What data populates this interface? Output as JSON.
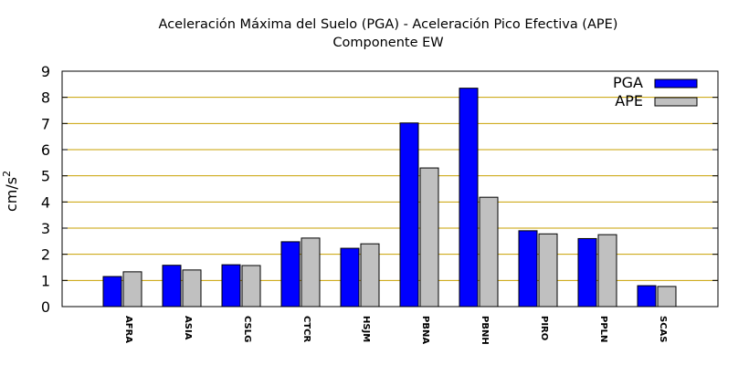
{
  "chart_data": {
    "type": "bar",
    "title": "Aceleración Máxima del Suelo (PGA) -  Aceleración Pico Efectiva (APE)",
    "subtitle": "Componente EW",
    "xlabel": "",
    "ylabel": "cm/s",
    "ylabel_superscript": "2",
    "ylim": [
      0,
      9
    ],
    "yticks": [
      "0",
      "1",
      "2",
      "3",
      "4",
      "5",
      "6",
      "7",
      "8",
      "9"
    ],
    "grid": true,
    "legend_position": "top-right",
    "categories": [
      "AFRA",
      "ASIA",
      "CSLG",
      "CTCR",
      "HSJM",
      "PBNA",
      "PBNH",
      "PIRO",
      "PPLN",
      "SCAS"
    ],
    "series": [
      {
        "name": "PGA",
        "color": "#0000ff",
        "values": [
          1.15,
          1.58,
          1.6,
          2.48,
          2.23,
          7.02,
          8.35,
          2.9,
          2.6,
          0.8
        ]
      },
      {
        "name": "APE",
        "color": "#c0c0c0",
        "values": [
          1.33,
          1.4,
          1.57,
          2.62,
          2.4,
          5.3,
          4.18,
          2.78,
          2.75,
          0.77
        ]
      }
    ],
    "gridline_color": "#c8a000"
  }
}
